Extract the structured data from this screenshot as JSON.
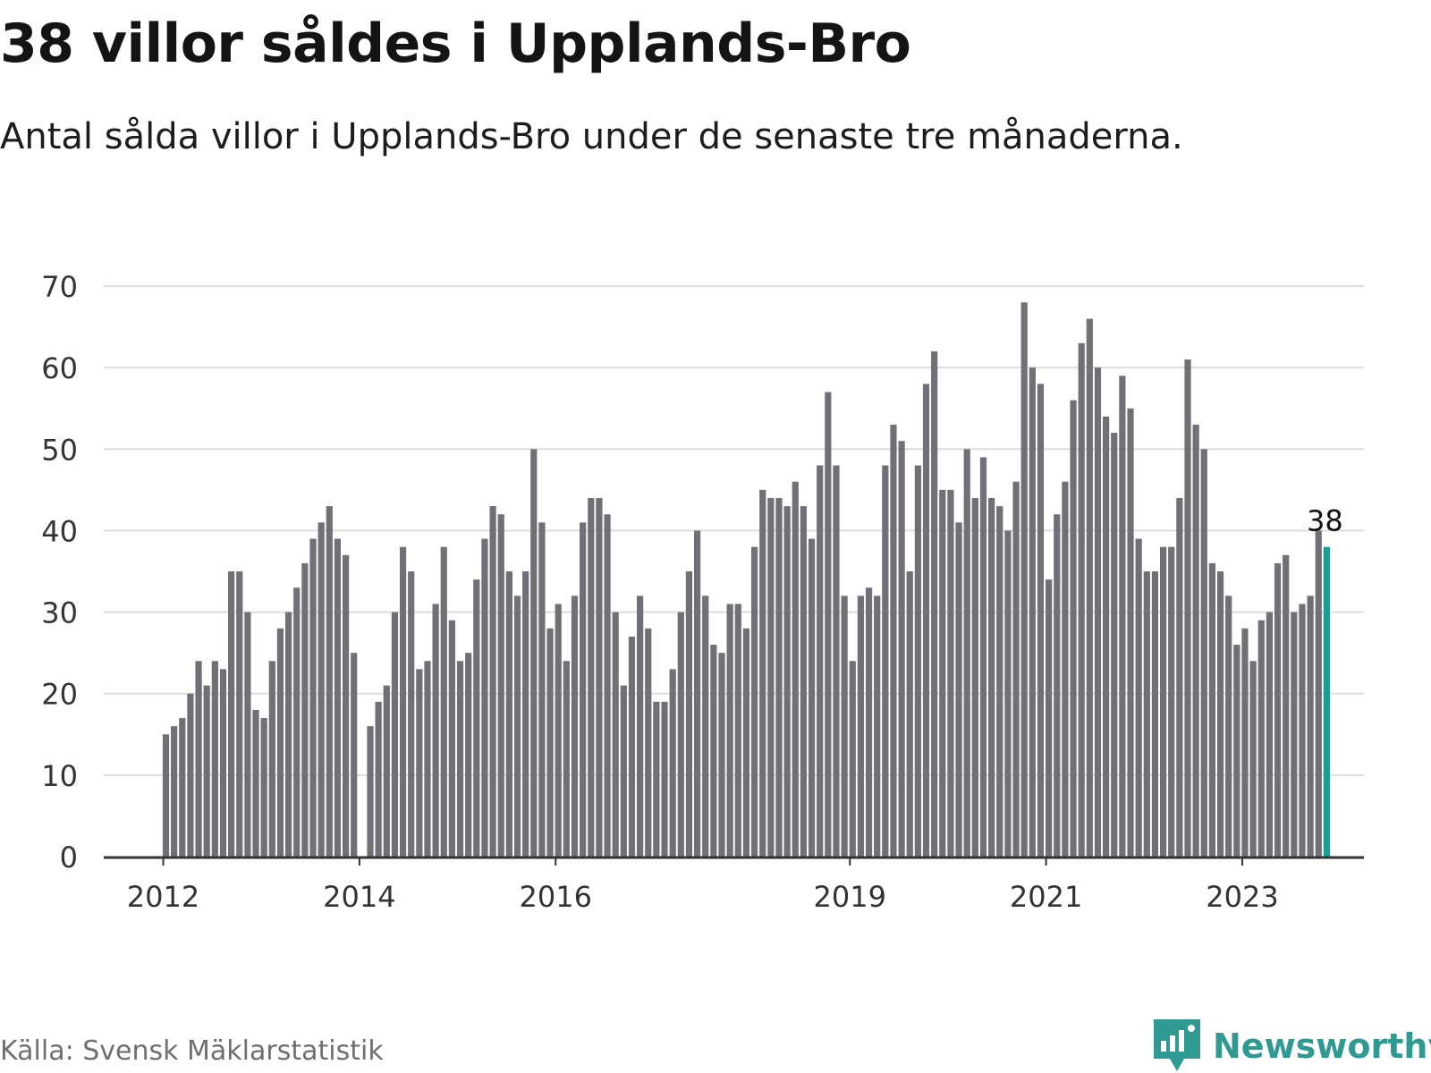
{
  "header": {
    "title": "38 villor såldes i Upplands-Bro",
    "subtitle": "Antal sålda villor i Upplands-Bro under de senaste tre månaderna."
  },
  "footer": {
    "source": "Källa: Svensk Mäklarstatistik",
    "brand": "Newsworthy"
  },
  "colors": {
    "bar": "#707076",
    "highlight": "#1a9e94",
    "grid": "#dddddd",
    "axis": "#333333",
    "brand": "#2f9a92"
  },
  "chart_data": {
    "type": "bar",
    "title": "38 villor såldes i Upplands-Bro",
    "xlabel": "",
    "ylabel": "",
    "ylim": [
      0,
      70
    ],
    "yticks": [
      0,
      10,
      20,
      30,
      40,
      50,
      60,
      70
    ],
    "x_tick_labels": [
      {
        "label": "2012",
        "index": 0
      },
      {
        "label": "2014",
        "index": 24
      },
      {
        "label": "2016",
        "index": 48
      },
      {
        "label": "2019",
        "index": 84
      },
      {
        "label": "2021",
        "index": 108
      },
      {
        "label": "2023",
        "index": 132
      }
    ],
    "highlight_label": "38",
    "values": [
      15,
      16,
      17,
      20,
      24,
      21,
      24,
      23,
      35,
      35,
      30,
      18,
      17,
      24,
      28,
      30,
      33,
      36,
      39,
      41,
      43,
      39,
      37,
      25,
      null,
      16,
      19,
      21,
      30,
      38,
      35,
      23,
      24,
      31,
      38,
      29,
      24,
      25,
      34,
      39,
      43,
      42,
      35,
      32,
      35,
      50,
      41,
      28,
      31,
      24,
      32,
      41,
      44,
      44,
      42,
      30,
      21,
      27,
      32,
      28,
      19,
      19,
      23,
      30,
      35,
      40,
      32,
      26,
      25,
      31,
      31,
      28,
      38,
      45,
      44,
      44,
      43,
      46,
      43,
      39,
      48,
      57,
      48,
      32,
      24,
      32,
      33,
      32,
      48,
      53,
      51,
      35,
      48,
      58,
      62,
      45,
      45,
      41,
      50,
      44,
      49,
      44,
      43,
      40,
      46,
      68,
      60,
      58,
      34,
      42,
      46,
      56,
      63,
      66,
      60,
      54,
      52,
      59,
      55,
      39,
      35,
      35,
      38,
      38,
      44,
      61,
      53,
      50,
      36,
      35,
      32,
      26,
      28,
      24,
      29,
      30,
      36,
      37,
      30,
      31,
      32,
      40,
      38
    ]
  }
}
